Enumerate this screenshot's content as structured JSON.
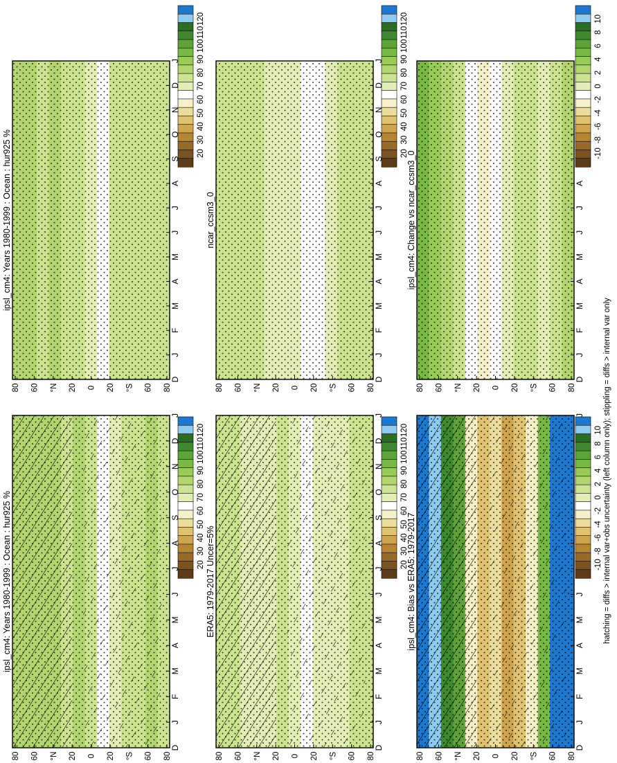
{
  "figure": {
    "footnote": "hatching = diffs > internal var+obs uncertainty (left column only); stippling = diffs > internal var only",
    "month_ticks": [
      "D",
      "J",
      "F",
      "M",
      "A",
      "M",
      "J",
      "J",
      "A",
      "S",
      "O",
      "N",
      "D",
      "J"
    ],
    "lat_ticks": [
      "80",
      "60",
      "°N",
      "20",
      "0",
      "20",
      "°S",
      "60",
      "80"
    ]
  },
  "colors": {
    "abs_scale": [
      "#1f78d0",
      "#8ecbf0",
      "#2a6e23",
      "#3f8a2e",
      "#5ea33a",
      "#78b845",
      "#98cb57",
      "#b2d66f",
      "#cce38f",
      "#e2eeb5",
      "#ffffff",
      "#f6f0c8",
      "#ecdc9e",
      "#dfc272",
      "#cfa54f",
      "#b78634",
      "#9a6a28",
      "#7c5220",
      "#5e3c18"
    ],
    "diff_scale": [
      "#1f78d0",
      "#8ecbf0",
      "#2a6e23",
      "#3f8a2e",
      "#5ea33a",
      "#78b845",
      "#98cb57",
      "#b2d66f",
      "#cce38f",
      "#e2eeb5",
      "#ffffff",
      "#f6f0c8",
      "#ecdc9e",
      "#dfc272",
      "#cfa54f",
      "#b78634",
      "#9a6a28",
      "#7c5220",
      "#5e3c18"
    ]
  },
  "chart_data": [
    {
      "type": "heatmap",
      "title": "ipsl_cm4: Years 1980-1999 : Ocean : hur925 %",
      "x": [
        "D",
        "J",
        "F",
        "M",
        "A",
        "M",
        "J",
        "J",
        "A",
        "S",
        "O",
        "N",
        "D",
        "J"
      ],
      "y_ticks": [
        "80",
        "60",
        "°N",
        "20",
        "0",
        "20",
        "°S",
        "60",
        "80"
      ],
      "colorbar": [
        "120",
        "110",
        "100",
        "90",
        "80",
        "70",
        "60",
        "50",
        "40",
        "30",
        "20"
      ],
      "hatching": true,
      "stippling": true
    },
    {
      "type": "heatmap",
      "title": "ipsl_cm4: Years 1980-1999 : Ocean : hur925 %",
      "x": [
        "D",
        "J",
        "F",
        "M",
        "A",
        "M",
        "J",
        "J",
        "A",
        "S",
        "O",
        "N",
        "D",
        "J"
      ],
      "y_ticks": [
        "80",
        "60",
        "°N",
        "20",
        "0",
        "20",
        "°S",
        "60",
        "80"
      ],
      "colorbar": [
        "120",
        "110",
        "100",
        "90",
        "80",
        "70",
        "60",
        "50",
        "40",
        "30",
        "20"
      ],
      "hatching": false,
      "stippling": true
    },
    {
      "type": "heatmap",
      "title": "ERA5: 1979-2017 Uncer=5%",
      "x": [
        "D",
        "J",
        "F",
        "M",
        "A",
        "M",
        "J",
        "J",
        "A",
        "S",
        "O",
        "N",
        "D",
        "J"
      ],
      "y_ticks": [
        "80",
        "60",
        "°N",
        "20",
        "0",
        "20",
        "°S",
        "60",
        "80"
      ],
      "colorbar": [
        "120",
        "110",
        "100",
        "90",
        "80",
        "70",
        "60",
        "50",
        "40",
        "30",
        "20"
      ],
      "hatching": true,
      "stippling": true
    },
    {
      "type": "heatmap",
      "title": "ncar_ccsm3_0",
      "x": [
        "D",
        "J",
        "F",
        "M",
        "A",
        "M",
        "J",
        "J",
        "A",
        "S",
        "O",
        "N",
        "D",
        "J"
      ],
      "y_ticks": [
        "80",
        "60",
        "°N",
        "20",
        "0",
        "20",
        "°S",
        "60",
        "80"
      ],
      "colorbar": [
        "120",
        "110",
        "100",
        "90",
        "80",
        "70",
        "60",
        "50",
        "40",
        "30",
        "20"
      ],
      "hatching": false,
      "stippling": true
    },
    {
      "type": "heatmap",
      "title": "ipsl_cm4: Bias vs ERA5: 1979-2017",
      "x": [
        "D",
        "J",
        "F",
        "M",
        "A",
        "M",
        "J",
        "J",
        "A",
        "S",
        "O",
        "N",
        "D",
        "J"
      ],
      "y_ticks": [
        "80",
        "60",
        "°N",
        "20",
        "0",
        "20",
        "°S",
        "60",
        "80"
      ],
      "colorbar": [
        "10",
        "8",
        "6",
        "4",
        "2",
        "0",
        "-2",
        "-4",
        "-6",
        "-8",
        "-10"
      ],
      "hatching": true,
      "stippling": true
    },
    {
      "type": "heatmap",
      "title": "ipsl_cm4: Change vs ncar_ccsm3_0",
      "x": [
        "D",
        "J",
        "F",
        "M",
        "A",
        "M",
        "J",
        "J",
        "A",
        "S",
        "O",
        "N",
        "D",
        "J"
      ],
      "y_ticks": [
        "80",
        "60",
        "°N",
        "20",
        "0",
        "20",
        "°S",
        "60",
        "80"
      ],
      "colorbar": [
        "10",
        "8",
        "6",
        "4",
        "2",
        "0",
        "-2",
        "-4",
        "-6",
        "-8",
        "-10"
      ],
      "hatching": false,
      "stippling": true
    }
  ]
}
